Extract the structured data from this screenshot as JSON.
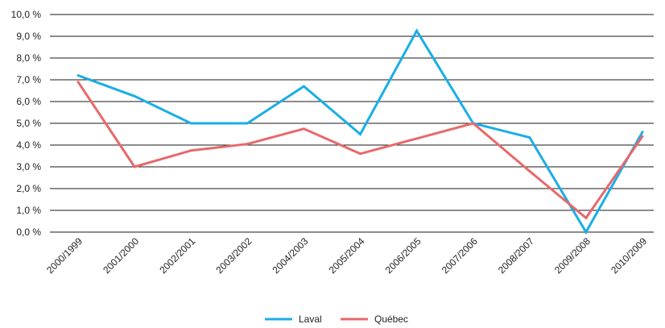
{
  "chart_data": {
    "type": "line",
    "categories": [
      "2000/1999",
      "2001/2000",
      "2002/2001",
      "2003/2002",
      "2004/2003",
      "2005/2004",
      "2006/2005",
      "2007/2006",
      "2008/2007",
      "2009/2008",
      "2010/2009"
    ],
    "series": [
      {
        "name": "Laval",
        "color": "#1aaee5",
        "values": [
          7.2,
          6.25,
          5.0,
          5.0,
          6.7,
          4.5,
          9.25,
          5.0,
          4.35,
          0.0,
          4.6
        ]
      },
      {
        "name": "Québec",
        "color": "#e8686b",
        "values": [
          6.9,
          3.0,
          3.75,
          4.05,
          4.75,
          3.6,
          4.3,
          5.0,
          2.8,
          0.65,
          4.4
        ]
      }
    ],
    "yticks": [
      "0,0 %",
      "1,0 %",
      "2,0 %",
      "3,0 %",
      "4,0 %",
      "5,0 %",
      "6,0 %",
      "7,0 %",
      "8,0 %",
      "9,0 %",
      "10,0 %"
    ],
    "ylim": [
      0,
      10
    ],
    "title": "",
    "xlabel": "",
    "ylabel": "",
    "grid": "horizontal",
    "legend": "bottom-center"
  }
}
